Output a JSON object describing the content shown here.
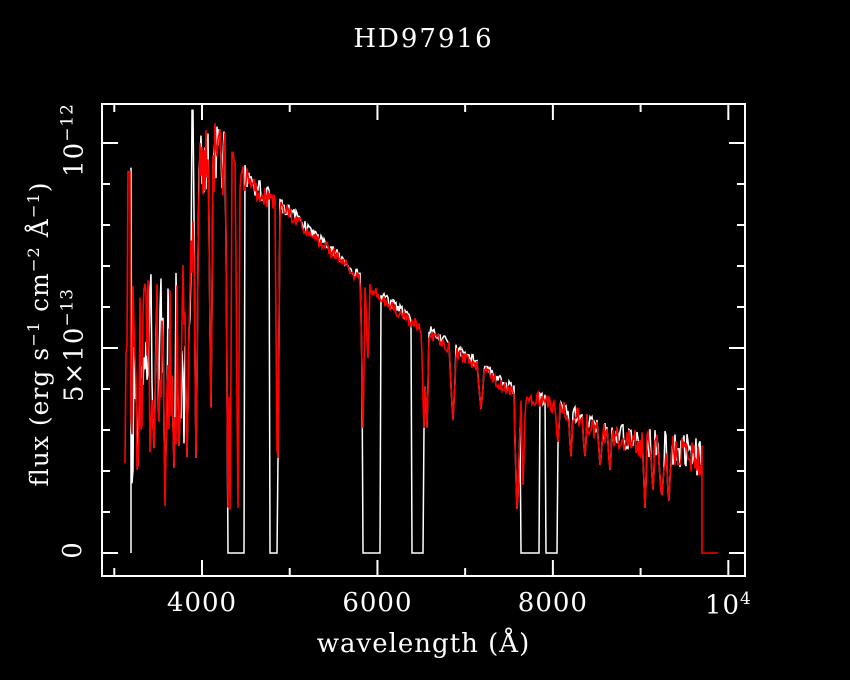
{
  "chart_data": {
    "type": "line",
    "title": "HD97916",
    "xlabel": "wavelength (Å)",
    "ylabel_segments": [
      {
        "t": "flux (erg s"
      },
      {
        "sup": "−1"
      },
      {
        "t": " cm"
      },
      {
        "sup": "−2"
      },
      {
        "t": " Å"
      },
      {
        "sup": "−1"
      },
      {
        "t": ")"
      }
    ],
    "x_axis": {
      "unit": "Å",
      "range": [
        2860,
        10190
      ],
      "major_ticks": [
        {
          "wavelength": 4000,
          "label": "4000",
          "label_sup": ""
        },
        {
          "wavelength": 6000,
          "label": "6000",
          "label_sup": ""
        },
        {
          "wavelength": 8000,
          "label": "8000",
          "label_sup": ""
        },
        {
          "wavelength": 10000,
          "label": "10",
          "label_sup": "4"
        }
      ],
      "minor_ticks": [
        3000,
        5000,
        7000,
        9000
      ]
    },
    "y_axis": {
      "unit": "erg s−1 cm−2 Å−1 (values in 1e-13)",
      "range_1e13": [
        -0.56,
        10.95
      ],
      "major_ticks": [
        {
          "flux_1e13": 0,
          "label": "0",
          "label_sup": ""
        },
        {
          "flux_1e13": 5,
          "label": "5×10",
          "label_sup": "−13"
        },
        {
          "flux_1e13": 10,
          "label": "10",
          "label_sup": "−12"
        }
      ],
      "minor_ticks": [
        1,
        2,
        3,
        4,
        6,
        7,
        8,
        9
      ]
    },
    "colors": {
      "background": "#000000",
      "frame": "#ffffff",
      "observed_spectrum": "#ff0000",
      "comparison_spectrum": "#ffffff"
    },
    "legend": "none",
    "grid": "off",
    "series": [
      {
        "name": "observed spectrum (red)",
        "color": "#ff0000",
        "wavelength_range": [
          3122,
          9705
        ],
        "zero_tail_range": [
          9710,
          9880
        ],
        "continuum_1e13": [
          [
            3122,
            3.2
          ],
          [
            3150,
            4.6
          ],
          [
            3190,
            4.8
          ],
          [
            3250,
            4.9
          ],
          [
            3320,
            4.6
          ],
          [
            3400,
            4.9
          ],
          [
            3500,
            5.0
          ],
          [
            3600,
            4.9
          ],
          [
            3700,
            5.1
          ],
          [
            3780,
            5.3
          ],
          [
            3840,
            6.2
          ],
          [
            3900,
            7.6
          ],
          [
            3950,
            8.8
          ],
          [
            4000,
            9.5
          ],
          [
            4060,
            9.6
          ],
          [
            4150,
            9.65
          ],
          [
            4250,
            9.5
          ],
          [
            4300,
            9.4
          ],
          [
            4400,
            9.2
          ],
          [
            4490,
            9.15
          ],
          [
            4600,
            8.9
          ],
          [
            4740,
            8.65
          ],
          [
            5000,
            8.25
          ],
          [
            5250,
            7.75
          ],
          [
            5500,
            7.3
          ],
          [
            5750,
            6.75
          ],
          [
            6000,
            6.3
          ],
          [
            6250,
            5.85
          ],
          [
            6500,
            5.5
          ],
          [
            6750,
            5.1
          ],
          [
            7000,
            4.75
          ],
          [
            7250,
            4.4
          ],
          [
            7500,
            3.95
          ],
          [
            7750,
            3.8
          ],
          [
            8000,
            3.6
          ],
          [
            8250,
            3.35
          ],
          [
            8500,
            3.0
          ],
          [
            8750,
            2.8
          ],
          [
            9000,
            2.65
          ],
          [
            9250,
            2.55
          ],
          [
            9500,
            2.4
          ],
          [
            9700,
            2.2
          ]
        ],
        "noise_amp_1e13": [
          [
            3122,
            2.0
          ],
          [
            3800,
            1.8
          ],
          [
            3900,
            0.8
          ],
          [
            3950,
            0.9
          ],
          [
            4300,
            0.85
          ],
          [
            4420,
            0.35
          ],
          [
            4500,
            0.3
          ],
          [
            4800,
            0.22
          ],
          [
            5200,
            0.15
          ],
          [
            6000,
            0.13
          ],
          [
            7000,
            0.15
          ],
          [
            7800,
            0.18
          ],
          [
            8500,
            0.25
          ],
          [
            9000,
            0.35
          ],
          [
            9400,
            0.45
          ],
          [
            9700,
            0.5
          ]
        ],
        "absorption_dips": [
          [
            3270,
            2.1,
            2
          ],
          [
            3450,
            2.3,
            2
          ],
          [
            3580,
            1.4,
            2
          ],
          [
            3680,
            2.0,
            2
          ],
          [
            3740,
            2.4,
            2
          ],
          [
            3830,
            2.2,
            2
          ],
          [
            3933,
            2.0,
            2
          ],
          [
            4101,
            3.2,
            2
          ],
          [
            4296,
            1.0,
            2
          ],
          [
            4318,
            0.7,
            2
          ],
          [
            4409,
            0.7,
            2
          ],
          [
            4861,
            0.9,
            2
          ],
          [
            5835,
            3.0,
            2
          ],
          [
            5890,
            4.6,
            2
          ],
          [
            6529,
            2.9,
            2
          ],
          [
            6563,
            2.9,
            2
          ],
          [
            6860,
            3.2,
            3
          ],
          [
            7180,
            3.5,
            3
          ],
          [
            7594,
            0.85,
            3
          ],
          [
            7660,
            1.6,
            2
          ],
          [
            8055,
            2.6,
            2
          ],
          [
            8205,
            2.3,
            2
          ],
          [
            8364,
            2.3,
            2
          ],
          [
            8540,
            2.05,
            2
          ],
          [
            8650,
            2.0,
            2
          ],
          [
            9050,
            1.1,
            2
          ],
          [
            9140,
            1.5,
            2
          ],
          [
            9240,
            1.3,
            3
          ],
          [
            9320,
            1.1,
            2
          ]
        ],
        "emission_spikes": [
          [
            3168,
            9.3
          ]
        ]
      },
      {
        "name": "comparison spectrum (white)",
        "color": "#ffffff",
        "wavelength_range": [
          3190,
          9700
        ],
        "offset_1e13": 0.08,
        "start_spike": [
          3190,
          9.4
        ],
        "emission_spikes": [
          [
            3890,
            10.8
          ]
        ],
        "gaps": [
          [
            4296,
            4490
          ],
          [
            4775,
            4866
          ],
          [
            5835,
            6040
          ],
          [
            6392,
            6529
          ],
          [
            7635,
            7850
          ],
          [
            7918,
            8055
          ]
        ]
      }
    ]
  }
}
